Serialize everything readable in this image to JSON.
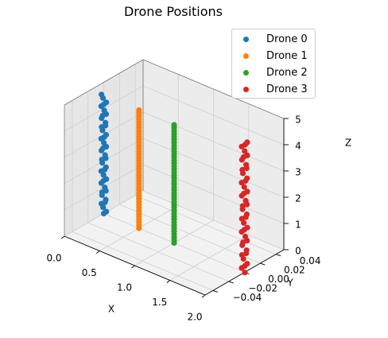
{
  "chart_data": {
    "type": "scatter",
    "projection": "3d",
    "title": "Drone Positions",
    "xlabel": "X",
    "ylabel": "Y",
    "zlabel": "Z",
    "xlim": [
      0.0,
      2.0
    ],
    "ylim": [
      -0.05,
      0.05
    ],
    "zlim": [
      0,
      5
    ],
    "xticks": [
      "0.0",
      "0.5",
      "1.0",
      "1.5",
      "2.0"
    ],
    "yticks": [
      "−0.04",
      "−0.02",
      "0.00",
      "0.02",
      "0.04"
    ],
    "zticks": [
      "0",
      "1",
      "2",
      "3",
      "4",
      "5"
    ],
    "grid": true,
    "legend_position": "top-right",
    "series": [
      {
        "name": "Drone 0",
        "color": "#1f77b4",
        "x": 0.0,
        "y": 0.0,
        "z": [
          0.0,
          4.5
        ],
        "jitter": 0.018
      },
      {
        "name": "Drone 1",
        "color": "#ff7f0e",
        "x": 0.5,
        "y": 0.0,
        "z": [
          0.0,
          4.5
        ],
        "jitter": 0.0
      },
      {
        "name": "Drone 2",
        "color": "#2ca02c",
        "x": 1.0,
        "y": 0.0,
        "z": [
          0.0,
          4.5
        ],
        "jitter": 0.0
      },
      {
        "name": "Drone 3",
        "color": "#d62728",
        "x": 2.0,
        "y": 0.0,
        "z": [
          0.0,
          5.0
        ],
        "jitter": 0.02
      }
    ]
  }
}
